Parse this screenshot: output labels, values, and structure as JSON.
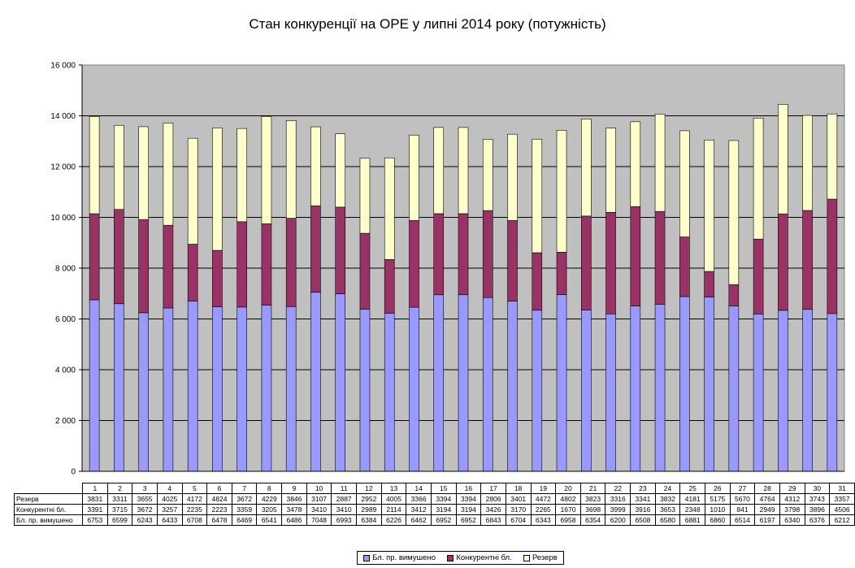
{
  "colors": {
    "forced": "#9999ff",
    "competitive": "#993366",
    "reserve": "#ffffcc",
    "plot_background": "#c0c0c0"
  },
  "chart_data": {
    "type": "bar",
    "stacked": true,
    "title": "Стан конкуренції на ОРЕ  у липні 2014 року (потужність)",
    "categories": [
      "1",
      "2",
      "3",
      "4",
      "5",
      "6",
      "7",
      "8",
      "9",
      "10",
      "11",
      "12",
      "13",
      "14",
      "15",
      "16",
      "17",
      "18",
      "19",
      "20",
      "21",
      "22",
      "23",
      "24",
      "25",
      "26",
      "27",
      "28",
      "29",
      "30",
      "31"
    ],
    "ylim": [
      0,
      16000
    ],
    "yticks": [
      0,
      2000,
      4000,
      6000,
      8000,
      10000,
      12000,
      14000,
      16000
    ],
    "ytick_labels": [
      "0",
      "2 000",
      "4 000",
      "6 000",
      "8 000",
      "10 000",
      "12 000",
      "14 000",
      "16 000"
    ],
    "grid": true,
    "legend_position": "bottom",
    "series": [
      {
        "name": "Бл. пр. вимушено",
        "legend": "Бл. пр. вимушено",
        "color_key": "forced",
        "values": [
          6753,
          6599,
          6243,
          6433,
          6708,
          6478,
          6469,
          6541,
          6486,
          7048,
          6993,
          6384,
          6226,
          6462,
          6952,
          6952,
          6843,
          6704,
          6343,
          6958,
          6354,
          6200,
          6508,
          6580,
          6881,
          6860,
          6514,
          6197,
          6340,
          6376,
          6212
        ]
      },
      {
        "name": "Конкурентні бл.",
        "legend": "Конкурентні бл.",
        "color_key": "competitive",
        "values": [
          3391,
          3715,
          3672,
          3257,
          2235,
          2223,
          3359,
          3205,
          3478,
          3410,
          3410,
          2989,
          2114,
          3412,
          3194,
          3194,
          3426,
          3170,
          2265,
          1670,
          3698,
          3999,
          3916,
          3653,
          2348,
          1010,
          841,
          2949,
          3798,
          3896,
          4506
        ]
      },
      {
        "name": "Резерв",
        "legend": "Резерв",
        "color_key": "reserve",
        "values": [
          3831,
          3311,
          3655,
          4025,
          4172,
          4824,
          3672,
          4229,
          3846,
          3107,
          2887,
          2952,
          4005,
          3366,
          3394,
          3394,
          2806,
          3401,
          4472,
          4802,
          3823,
          3316,
          3341,
          3832,
          4181,
          5175,
          5670,
          4764,
          4312,
          3743,
          3357
        ]
      }
    ],
    "table_row_order": [
      2,
      1,
      0
    ]
  }
}
